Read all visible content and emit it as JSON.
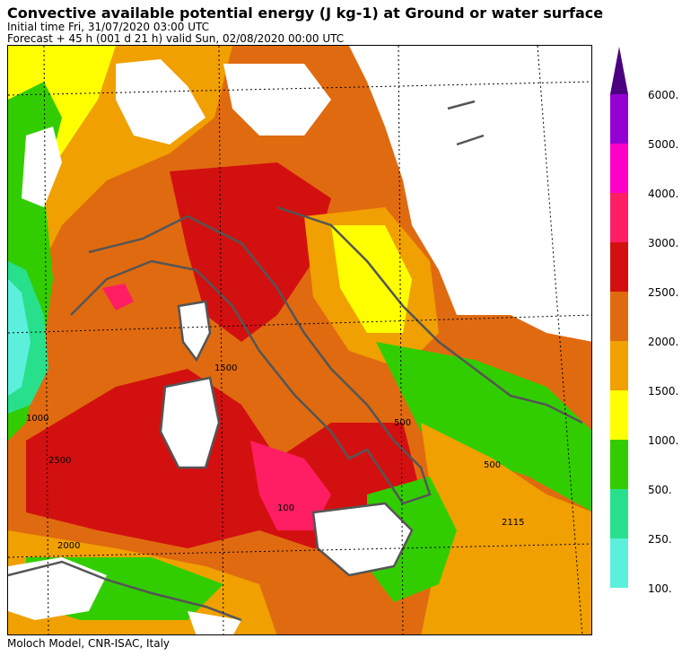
{
  "header": {
    "title": "Convective available potential energy (J kg-1) at Ground or water surface",
    "initial_time": "Initial time  Fri, 31/07/2020  03:00 UTC",
    "forecast": "Forecast  +  45 h  (001 d 21 h)  valid Sun, 02/08/2020 00:00 UTC"
  },
  "footer": {
    "credit": "Moloch Model, CNR-ISAC, Italy"
  },
  "map": {
    "contour_labels": [
      "500",
      "1000",
      "1500",
      "2000",
      "2500",
      "2115",
      "100"
    ],
    "colors": {
      "land": "#ffffff",
      "coast": "#555555",
      "lt100": "#ffffff"
    }
  },
  "legend": {
    "levels": [
      "6000.",
      "5000.",
      "4000.",
      "3000.",
      "2500.",
      "2000.",
      "1500.",
      "1000.",
      "500.",
      "250.",
      "100."
    ],
    "colors": [
      "#4b0082",
      "#9400d3",
      "#ff00c8",
      "#ff1e64",
      "#d31010",
      "#e06a10",
      "#f0a000",
      "#ffff00",
      "#32cd00",
      "#28e08c",
      "#5cf0dc"
    ]
  }
}
